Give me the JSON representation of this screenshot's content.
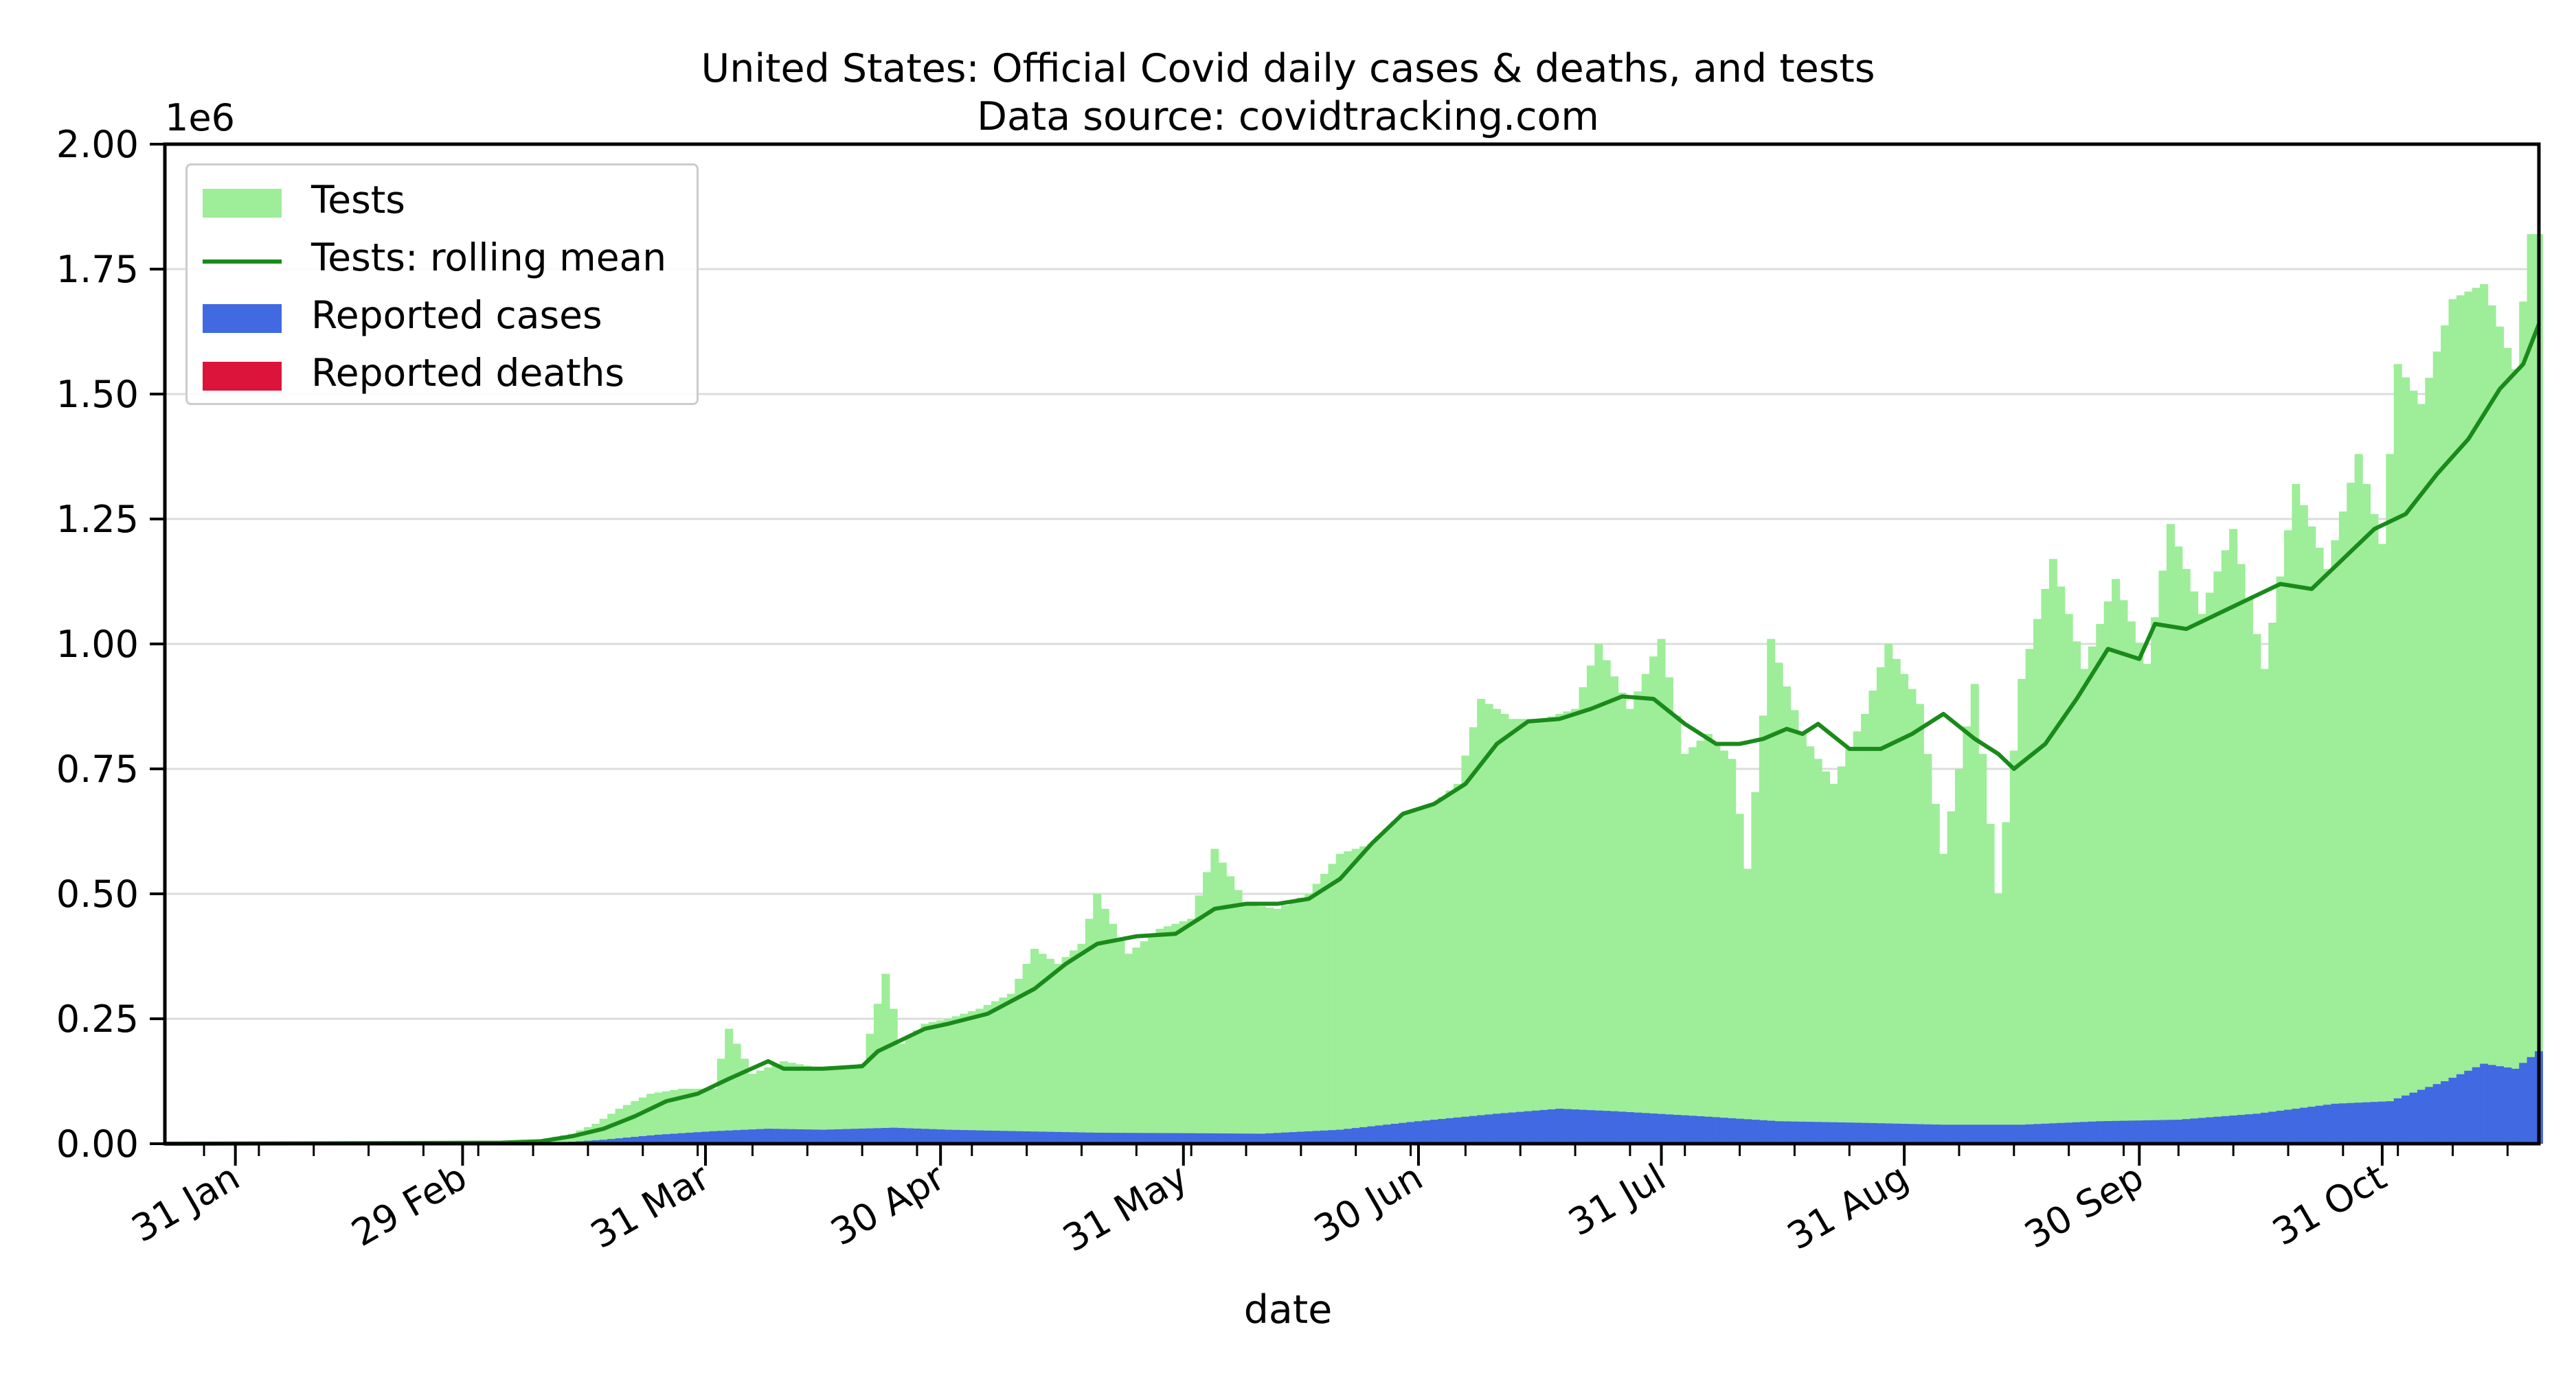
{
  "title": "United States: Official Covid daily cases & deaths, and tests",
  "subtitle": "Data source: covidtracking.com",
  "xlabel": "date",
  "legend": [
    {
      "label": "Tests",
      "kind": "patch",
      "color": "#9ded99"
    },
    {
      "label": "Tests: rolling mean",
      "kind": "line",
      "color": "#1a8a1a"
    },
    {
      "label": "Reported cases",
      "kind": "patch",
      "color": "#4169e1"
    },
    {
      "label": "Reported deaths",
      "kind": "patch",
      "color": "#dc143c"
    }
  ],
  "chart_data": {
    "type": "bar",
    "title": "United States: Official Covid daily cases & deaths, and tests",
    "subtitle": "Data source: covidtracking.com",
    "xlabel": "date",
    "ylabel": "",
    "y_offset_text": "1e6",
    "ylim": [
      0,
      2000000
    ],
    "yticks": [
      0,
      250000,
      500000,
      750000,
      1000000,
      1250000,
      1500000,
      1750000,
      2000000
    ],
    "ytick_labels": [
      "0.00",
      "0.25",
      "0.50",
      "0.75",
      "1.00",
      "1.25",
      "1.50",
      "1.75",
      "2.00"
    ],
    "xlim": [
      "2020-01-22",
      "2020-11-20"
    ],
    "xticks": [
      "2020-01-31",
      "2020-02-29",
      "2020-03-31",
      "2020-04-30",
      "2020-05-31",
      "2020-06-30",
      "2020-07-31",
      "2020-08-31",
      "2020-09-30",
      "2020-10-31"
    ],
    "xtick_labels": [
      "31 Jan",
      "29 Feb",
      "31 Mar",
      "30 Apr",
      "31 May",
      "30 Jun",
      "31 Jul",
      "31 Aug",
      "30 Sep",
      "31 Oct"
    ],
    "grid": "horizontal",
    "legend_position": "top-left",
    "colors": {
      "tests": "#9ded99",
      "rolling": "#1a8a1a",
      "cases": "#4169e1",
      "deaths": "#dc143c"
    },
    "series": [
      {
        "name": "Tests",
        "points": [
          [
            "2020-01-22",
            0
          ],
          [
            "2020-02-15",
            0
          ],
          [
            "2020-03-01",
            500
          ],
          [
            "2020-03-05",
            1500
          ],
          [
            "2020-03-10",
            8000
          ],
          [
            "2020-03-14",
            20000
          ],
          [
            "2020-03-17",
            40000
          ],
          [
            "2020-03-20",
            70000
          ],
          [
            "2020-03-24",
            100000
          ],
          [
            "2020-03-28",
            110000
          ],
          [
            "2020-04-01",
            110000
          ],
          [
            "2020-04-03",
            230000
          ],
          [
            "2020-04-06",
            140000
          ],
          [
            "2020-04-10",
            165000
          ],
          [
            "2020-04-15",
            150000
          ],
          [
            "2020-04-20",
            160000
          ],
          [
            "2020-04-23",
            340000
          ],
          [
            "2020-04-25",
            200000
          ],
          [
            "2020-04-28",
            240000
          ],
          [
            "2020-05-01",
            250000
          ],
          [
            "2020-05-05",
            270000
          ],
          [
            "2020-05-09",
            300000
          ],
          [
            "2020-05-12",
            390000
          ],
          [
            "2020-05-15",
            360000
          ],
          [
            "2020-05-18",
            400000
          ],
          [
            "2020-05-20",
            500000
          ],
          [
            "2020-05-24",
            380000
          ],
          [
            "2020-05-28",
            430000
          ],
          [
            "2020-06-01",
            450000
          ],
          [
            "2020-06-04",
            590000
          ],
          [
            "2020-06-08",
            480000
          ],
          [
            "2020-06-12",
            470000
          ],
          [
            "2020-06-16",
            500000
          ],
          [
            "2020-06-20",
            580000
          ],
          [
            "2020-06-24",
            600000
          ],
          [
            "2020-06-28",
            660000
          ],
          [
            "2020-07-02",
            680000
          ],
          [
            "2020-07-05",
            720000
          ],
          [
            "2020-07-08",
            890000
          ],
          [
            "2020-07-12",
            850000
          ],
          [
            "2020-07-16",
            850000
          ],
          [
            "2020-07-20",
            870000
          ],
          [
            "2020-07-23",
            1000000
          ],
          [
            "2020-07-27",
            870000
          ],
          [
            "2020-07-31",
            1010000
          ],
          [
            "2020-08-03",
            780000
          ],
          [
            "2020-08-06",
            820000
          ],
          [
            "2020-08-09",
            770000
          ],
          [
            "2020-08-11",
            550000
          ],
          [
            "2020-08-14",
            1010000
          ],
          [
            "2020-08-18",
            820000
          ],
          [
            "2020-08-22",
            720000
          ],
          [
            "2020-08-26",
            860000
          ],
          [
            "2020-08-29",
            1000000
          ],
          [
            "2020-09-02",
            880000
          ],
          [
            "2020-09-05",
            580000
          ],
          [
            "2020-09-09",
            920000
          ],
          [
            "2020-09-12",
            500000
          ],
          [
            "2020-09-15",
            930000
          ],
          [
            "2020-09-19",
            1170000
          ],
          [
            "2020-09-23",
            950000
          ],
          [
            "2020-09-27",
            1130000
          ],
          [
            "2020-10-01",
            960000
          ],
          [
            "2020-10-04",
            1240000
          ],
          [
            "2020-10-08",
            1060000
          ],
          [
            "2020-10-12",
            1230000
          ],
          [
            "2020-10-16",
            950000
          ],
          [
            "2020-10-20",
            1320000
          ],
          [
            "2020-10-24",
            1150000
          ],
          [
            "2020-10-28",
            1380000
          ],
          [
            "2020-10-31",
            1200000
          ],
          [
            "2020-11-02",
            1560000
          ],
          [
            "2020-11-05",
            1480000
          ],
          [
            "2020-11-09",
            1690000
          ],
          [
            "2020-11-13",
            1720000
          ],
          [
            "2020-11-17",
            1550000
          ],
          [
            "2020-11-19",
            1820000
          ]
        ]
      },
      {
        "name": "Tests: rolling mean",
        "points": [
          [
            "2020-01-22",
            0
          ],
          [
            "2020-03-05",
            2000
          ],
          [
            "2020-03-10",
            5000
          ],
          [
            "2020-03-14",
            15000
          ],
          [
            "2020-03-18",
            30000
          ],
          [
            "2020-03-22",
            55000
          ],
          [
            "2020-03-26",
            85000
          ],
          [
            "2020-03-30",
            100000
          ],
          [
            "2020-04-03",
            130000
          ],
          [
            "2020-04-08",
            165000
          ],
          [
            "2020-04-10",
            150000
          ],
          [
            "2020-04-15",
            150000
          ],
          [
            "2020-04-20",
            155000
          ],
          [
            "2020-04-22",
            185000
          ],
          [
            "2020-04-28",
            230000
          ],
          [
            "2020-05-01",
            240000
          ],
          [
            "2020-05-06",
            260000
          ],
          [
            "2020-05-12",
            310000
          ],
          [
            "2020-05-16",
            360000
          ],
          [
            "2020-05-20",
            400000
          ],
          [
            "2020-05-25",
            415000
          ],
          [
            "2020-05-30",
            420000
          ],
          [
            "2020-06-04",
            470000
          ],
          [
            "2020-06-08",
            480000
          ],
          [
            "2020-06-12",
            480000
          ],
          [
            "2020-06-16",
            490000
          ],
          [
            "2020-06-20",
            530000
          ],
          [
            "2020-06-24",
            600000
          ],
          [
            "2020-06-28",
            660000
          ],
          [
            "2020-07-02",
            680000
          ],
          [
            "2020-07-06",
            720000
          ],
          [
            "2020-07-10",
            800000
          ],
          [
            "2020-07-14",
            845000
          ],
          [
            "2020-07-18",
            850000
          ],
          [
            "2020-07-22",
            870000
          ],
          [
            "2020-07-26",
            895000
          ],
          [
            "2020-07-30",
            890000
          ],
          [
            "2020-08-03",
            840000
          ],
          [
            "2020-08-07",
            800000
          ],
          [
            "2020-08-10",
            800000
          ],
          [
            "2020-08-13",
            810000
          ],
          [
            "2020-08-16",
            830000
          ],
          [
            "2020-08-18",
            820000
          ],
          [
            "2020-08-20",
            840000
          ],
          [
            "2020-08-24",
            790000
          ],
          [
            "2020-08-28",
            790000
          ],
          [
            "2020-09-01",
            820000
          ],
          [
            "2020-09-05",
            860000
          ],
          [
            "2020-09-09",
            810000
          ],
          [
            "2020-09-12",
            780000
          ],
          [
            "2020-09-14",
            750000
          ],
          [
            "2020-09-18",
            800000
          ],
          [
            "2020-09-22",
            890000
          ],
          [
            "2020-09-26",
            990000
          ],
          [
            "2020-09-30",
            970000
          ],
          [
            "2020-10-02",
            1040000
          ],
          [
            "2020-10-06",
            1030000
          ],
          [
            "2020-10-10",
            1060000
          ],
          [
            "2020-10-14",
            1090000
          ],
          [
            "2020-10-18",
            1120000
          ],
          [
            "2020-10-22",
            1110000
          ],
          [
            "2020-10-26",
            1170000
          ],
          [
            "2020-10-30",
            1230000
          ],
          [
            "2020-11-03",
            1260000
          ],
          [
            "2020-11-07",
            1340000
          ],
          [
            "2020-11-11",
            1410000
          ],
          [
            "2020-11-15",
            1510000
          ],
          [
            "2020-11-18",
            1560000
          ],
          [
            "2020-11-20",
            1640000
          ]
        ]
      },
      {
        "name": "Reported cases",
        "points": [
          [
            "2020-01-22",
            0
          ],
          [
            "2020-03-05",
            200
          ],
          [
            "2020-03-12",
            2000
          ],
          [
            "2020-03-18",
            8000
          ],
          [
            "2020-03-25",
            18000
          ],
          [
            "2020-04-01",
            25000
          ],
          [
            "2020-04-08",
            30000
          ],
          [
            "2020-04-15",
            28000
          ],
          [
            "2020-04-24",
            32000
          ],
          [
            "2020-05-01",
            28000
          ],
          [
            "2020-05-10",
            25000
          ],
          [
            "2020-05-20",
            22000
          ],
          [
            "2020-06-01",
            21000
          ],
          [
            "2020-06-10",
            20000
          ],
          [
            "2020-06-20",
            28000
          ],
          [
            "2020-06-30",
            45000
          ],
          [
            "2020-07-10",
            60000
          ],
          [
            "2020-07-18",
            70000
          ],
          [
            "2020-07-25",
            65000
          ],
          [
            "2020-08-05",
            55000
          ],
          [
            "2020-08-15",
            45000
          ],
          [
            "2020-08-25",
            42000
          ],
          [
            "2020-09-05",
            38000
          ],
          [
            "2020-09-15",
            38000
          ],
          [
            "2020-09-25",
            45000
          ],
          [
            "2020-10-05",
            48000
          ],
          [
            "2020-10-15",
            60000
          ],
          [
            "2020-10-25",
            80000
          ],
          [
            "2020-11-01",
            85000
          ],
          [
            "2020-11-08",
            125000
          ],
          [
            "2020-11-13",
            160000
          ],
          [
            "2020-11-17",
            150000
          ],
          [
            "2020-11-20",
            185000
          ]
        ]
      },
      {
        "name": "Reported deaths",
        "points": [
          [
            "2020-01-22",
            0
          ],
          [
            "2020-03-20",
            200
          ],
          [
            "2020-04-15",
            2500
          ],
          [
            "2020-05-15",
            1500
          ],
          [
            "2020-06-15",
            700
          ],
          [
            "2020-07-25",
            1100
          ],
          [
            "2020-09-15",
            900
          ],
          [
            "2020-10-15",
            900
          ],
          [
            "2020-11-20",
            1900
          ]
        ]
      }
    ]
  }
}
